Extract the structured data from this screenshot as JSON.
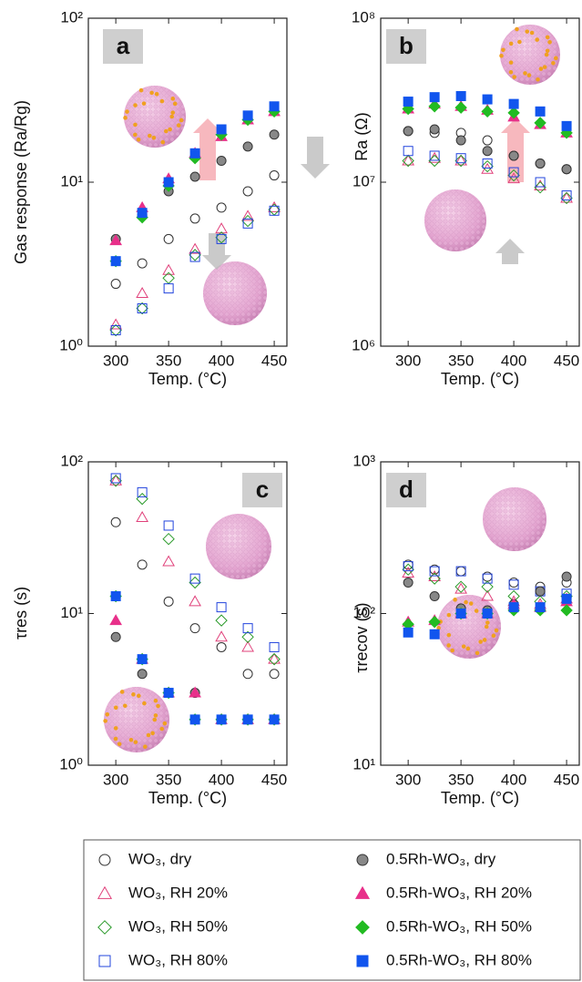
{
  "chart_data": [
    {
      "type": "scatter",
      "label": "a",
      "ylabel": "Gas response (Ra/Rg)",
      "xlabel": "Temp. (°C)",
      "x": [
        300,
        325,
        350,
        375,
        400,
        425,
        450
      ],
      "xlim": [
        274,
        462
      ],
      "xticks": [
        300,
        350,
        400,
        450
      ],
      "ylim": [
        1,
        100
      ],
      "log_y": true,
      "yticks": [
        {
          "value": 1,
          "label": "10⁰"
        },
        {
          "value": 10,
          "label": "10¹"
        },
        {
          "value": 100,
          "label": "10²"
        }
      ],
      "series": [
        {
          "values": [
            2.4,
            3.2,
            4.5,
            6,
            7,
            8.8,
            11
          ]
        },
        {
          "values": [
            1.35,
            2.1,
            2.9,
            3.9,
            5.2,
            6.2,
            7
          ]
        },
        {
          "values": [
            1.25,
            1.7,
            2.6,
            3.6,
            4.6,
            5.8,
            6.8
          ]
        },
        {
          "values": [
            1.25,
            1.7,
            2.25,
            3.5,
            4.5,
            5.6,
            6.7
          ]
        },
        {
          "values": [
            4.5,
            6.3,
            8.8,
            10.8,
            13.5,
            16.5,
            19.5
          ]
        },
        {
          "values": [
            4.4,
            7,
            10.5,
            15,
            19,
            24,
            27
          ]
        },
        {
          "values": [
            3.3,
            6.1,
            9.5,
            14,
            19.5,
            24,
            27
          ]
        },
        {
          "values": [
            3.3,
            6.5,
            10,
            15,
            21,
            25.5,
            29
          ]
        }
      ]
    },
    {
      "type": "scatter",
      "label": "b",
      "ylabel": "Ra (Ω)",
      "xlabel": "Temp. (°C)",
      "x": [
        300,
        325,
        350,
        375,
        400,
        425,
        450
      ],
      "xlim": [
        274,
        462
      ],
      "xticks": [
        300,
        350,
        400,
        450
      ],
      "ylim": [
        1000000,
        100000000
      ],
      "log_y": true,
      "yticks": [
        {
          "value": 1000000,
          "label": "10⁶"
        },
        {
          "value": 10000000,
          "label": "10⁷"
        },
        {
          "value": 100000000,
          "label": "10⁸"
        }
      ],
      "series": [
        {
          "values": [
            20500000,
            20000000,
            20000000,
            18000000,
            14500000,
            13000000,
            12000000
          ]
        },
        {
          "values": [
            13500000,
            14000000,
            13500000,
            12000000,
            10500000,
            9500000,
            8000000
          ]
        },
        {
          "values": [
            13500000,
            13500000,
            13500000,
            12500000,
            11000000,
            9300000,
            8000000
          ]
        },
        {
          "values": [
            15500000,
            14500000,
            14000000,
            13000000,
            11500000,
            10000000,
            8300000
          ]
        },
        {
          "values": [
            20500000,
            21000000,
            18000000,
            15500000,
            14500000,
            13000000,
            12000000
          ]
        },
        {
          "values": [
            28000000,
            30000000,
            29000000,
            27500000,
            25000000,
            22500000,
            20000000
          ]
        },
        {
          "values": [
            28000000,
            29000000,
            28500000,
            27000000,
            26500000,
            23000000,
            20000000
          ]
        },
        {
          "values": [
            31000000,
            33000000,
            33500000,
            32000000,
            30000000,
            27000000,
            22000000
          ]
        }
      ]
    },
    {
      "type": "scatter",
      "label": "c",
      "ylabel": "τres (s)",
      "xlabel": "Temp. (°C)",
      "x": [
        300,
        325,
        350,
        375,
        400,
        425,
        450
      ],
      "xlim": [
        274,
        462
      ],
      "xticks": [
        300,
        350,
        400,
        450
      ],
      "ylim": [
        1,
        100
      ],
      "log_y": true,
      "yticks": [
        {
          "value": 1,
          "label": "10⁰"
        },
        {
          "value": 10,
          "label": "10¹"
        },
        {
          "value": 100,
          "label": "10²"
        }
      ],
      "series": [
        {
          "values": [
            40,
            21,
            12,
            8,
            6,
            4,
            4
          ]
        },
        {
          "values": [
            75,
            43,
            22,
            12,
            7,
            6,
            5
          ]
        },
        {
          "values": [
            75,
            57,
            31,
            16,
            9,
            7,
            5
          ]
        },
        {
          "values": [
            78,
            63,
            38,
            17,
            11,
            8,
            6
          ]
        },
        {
          "values": [
            7,
            4,
            3,
            3,
            2,
            2,
            2
          ]
        },
        {
          "values": [
            9,
            5,
            3,
            3,
            2,
            2,
            2
          ]
        },
        {
          "values": [
            13,
            5,
            3,
            2,
            2,
            2,
            2
          ]
        },
        {
          "values": [
            13,
            5,
            3,
            2,
            2,
            2,
            2
          ]
        }
      ]
    },
    {
      "type": "scatter",
      "label": "d",
      "ylabel": "τrecov (s)",
      "xlabel": "Temp. (°C)",
      "x": [
        300,
        325,
        350,
        375,
        400,
        425,
        450
      ],
      "xlim": [
        274,
        462
      ],
      "xticks": [
        300,
        350,
        400,
        450
      ],
      "ylim": [
        10,
        1000
      ],
      "log_y": true,
      "yticks": [
        {
          "value": 10,
          "label": "10¹"
        },
        {
          "value": 100,
          "label": "10²"
        },
        {
          "value": 1000,
          "label": "10³"
        }
      ],
      "series": [
        {
          "values": [
            210,
            195,
            190,
            175,
            160,
            150,
            160
          ]
        },
        {
          "values": [
            185,
            175,
            145,
            130,
            120,
            115,
            125
          ]
        },
        {
          "values": [
            195,
            170,
            150,
            150,
            130,
            120,
            130
          ]
        },
        {
          "values": [
            205,
            190,
            190,
            170,
            155,
            140,
            135
          ]
        },
        {
          "values": [
            160,
            130,
            108,
            105,
            115,
            140,
            175
          ]
        },
        {
          "values": [
            88,
            90,
            100,
            100,
            115,
            110,
            120
          ]
        },
        {
          "values": [
            85,
            88,
            100,
            100,
            105,
            105,
            105
          ]
        },
        {
          "values": [
            75,
            73,
            100,
            100,
            110,
            110,
            125
          ]
        }
      ]
    }
  ],
  "legend": [
    {
      "name": "WO₃, dry",
      "color": "#333333",
      "marker": "circle",
      "filled": false
    },
    {
      "name": "WO₃, RH 20%",
      "color": "#e0407a",
      "marker": "triangle",
      "filled": false
    },
    {
      "name": "WO₃, RH 50%",
      "color": "#2a9a2a",
      "marker": "diamond",
      "filled": false
    },
    {
      "name": "WO₃, RH 80%",
      "color": "#2244dd",
      "marker": "square",
      "filled": false
    },
    {
      "name": "0.5Rh-WO₃, dry",
      "color": "#888888",
      "marker": "circle",
      "filled": true
    },
    {
      "name": "0.5Rh-WO₃, RH 20%",
      "color": "#e8308a",
      "marker": "triangle",
      "filled": true
    },
    {
      "name": "0.5Rh-WO₃, RH 50%",
      "color": "#22bb22",
      "marker": "diamond",
      "filled": true
    },
    {
      "name": "0.5Rh-WO₃, RH 80%",
      "color": "#1155ee",
      "marker": "square",
      "filled": true
    }
  ]
}
